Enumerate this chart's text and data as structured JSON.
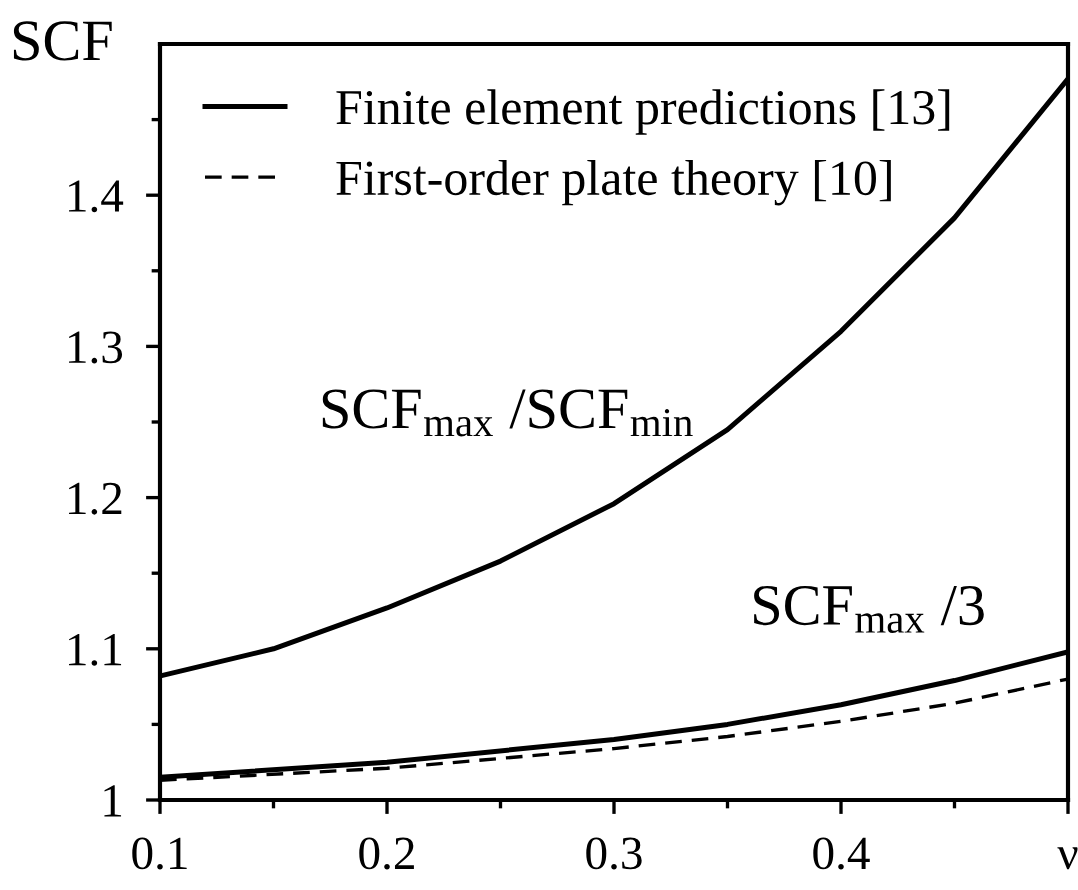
{
  "chart_data": {
    "type": "line",
    "ylabel": "SCF",
    "series": [
      {
        "name": "Finite element predictions [13]",
        "color": "#000000",
        "line_style": "solid",
        "x": [
          0.1,
          0.15,
          0.2,
          0.25,
          0.3,
          0.35,
          0.4,
          0.45,
          0.5
        ],
        "values": [
          1.082,
          1.1,
          1.127,
          1.158,
          1.196,
          1.245,
          1.31,
          1.385,
          1.477
        ]
      },
      {
        "color": "#000000",
        "line_style": "solid",
        "x": [
          0.1,
          0.2,
          0.3,
          0.35,
          0.4,
          0.45,
          0.5
        ],
        "values": [
          1.015,
          1.025,
          1.04,
          1.05,
          1.063,
          1.079,
          1.098
        ]
      },
      {
        "name": "First-order plate theory [10]",
        "color": "#000000",
        "line_style": "dashed",
        "x": [
          0.1,
          0.2,
          0.3,
          0.35,
          0.4,
          0.45,
          0.5
        ],
        "values": [
          1.013,
          1.021,
          1.034,
          1.042,
          1.052,
          1.064,
          1.08
        ]
      }
    ],
    "xlim": [
      0.1,
      0.5
    ],
    "ylim": [
      1,
      1.5
    ],
    "xticks": [
      0.1,
      {
        "value": 0.15,
        "label": null
      },
      0.2,
      {
        "value": 0.25,
        "label": null
      },
      0.3,
      {
        "value": 0.35,
        "label": null
      },
      0.4,
      {
        "value": 0.45,
        "label": null
      },
      {
        "value": 0.5,
        "label": "ν"
      }
    ],
    "yticks": [
      1,
      {
        "value": 1.05,
        "label": null
      },
      1.1,
      {
        "value": 1.15,
        "label": null
      },
      1.2,
      {
        "value": 1.25,
        "label": null
      },
      1.3,
      {
        "value": 1.35,
        "label": null
      },
      1.4,
      {
        "value": 1.45,
        "label": null
      }
    ],
    "annotations": [
      "SCF$_{max}$ /SCF$_{min}$",
      "SCF$_{max}$ /3"
    ],
    "legend": "top left",
    "grid": false,
    "marker": "none"
  }
}
